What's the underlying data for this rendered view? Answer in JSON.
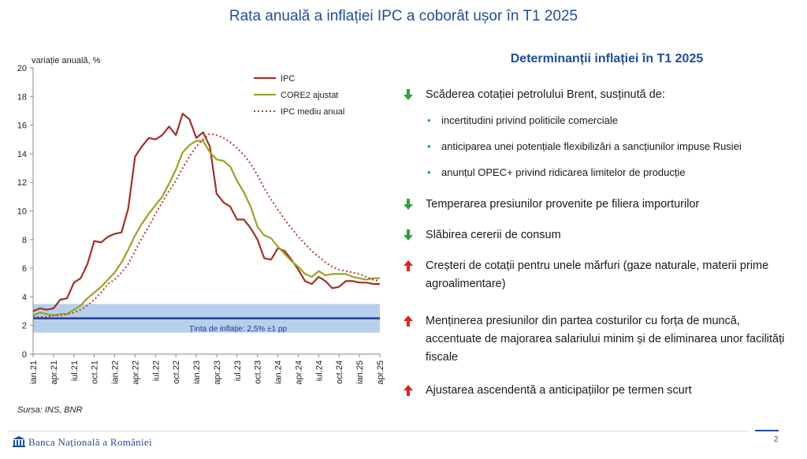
{
  "page": {
    "title": "Rata anuală a inflației IPC a coborât ușor în T1 2025",
    "source": "Sursa: INS, BNR",
    "bank_name": "Banca Națională a României",
    "page_number": "2"
  },
  "right": {
    "heading": "Determinanții inflației în T1 2025",
    "items": [
      {
        "direction": "down",
        "text": "Scăderea cotației petrolului Brent, susținută de:"
      },
      {
        "direction": "down",
        "text": "Temperarea presiunilor provenite pe filiera importurilor"
      },
      {
        "direction": "down",
        "text": "Slăbirea cererii de consum"
      },
      {
        "direction": "up",
        "text": "Creșteri de cotații pentru unele mărfuri (gaze naturale, materii prime agroalimentare)"
      },
      {
        "direction": "up",
        "text": "Menținerea presiunilor din partea costurilor cu forța de muncă, accentuate de majorarea salariului minim și de eliminarea unor facilități fiscale"
      },
      {
        "direction": "up",
        "text": "Ajustarea ascendentă a anticipațiilor pe termen scurt"
      }
    ],
    "subitems": [
      "incertitudini privind politicile comerciale",
      "anticiparea unei potențiale flexibilizări a sancțiunilor impuse Rusiei",
      "anunțul OPEC+ privind ridicarea limitelor de producție"
    ],
    "colors": {
      "down": "#2aa43a",
      "up": "#e2231a"
    }
  },
  "chart_data": {
    "type": "line",
    "ylabel": "variație anuală, %",
    "ylim": [
      0,
      20
    ],
    "yticks": [
      0,
      2,
      4,
      6,
      8,
      10,
      12,
      14,
      16,
      18,
      20
    ],
    "x": [
      "ian.21",
      "feb.21",
      "mar.21",
      "apr.21",
      "mai.21",
      "iun.21",
      "iul.21",
      "aug.21",
      "sep.21",
      "oct.21",
      "nov.21",
      "dec.21",
      "ian.22",
      "feb.22",
      "mar.22",
      "apr.22",
      "mai.22",
      "iun.22",
      "iul.22",
      "aug.22",
      "sep.22",
      "oct.22",
      "nov.22",
      "dec.22",
      "ian.23",
      "feb.23",
      "mar.23",
      "apr.23",
      "mai.23",
      "iun.23",
      "iul.23",
      "aug.23",
      "sep.23",
      "oct.23",
      "nov.23",
      "dec.23",
      "ian.24",
      "feb.24",
      "mar.24",
      "apr.24",
      "mai.24",
      "iun.24",
      "iul.24",
      "aug.24",
      "sep.24",
      "oct.24",
      "nov.24",
      "dec.24",
      "ian.25",
      "feb.25",
      "mar.25",
      "apr.25"
    ],
    "xtick_labels": [
      "ian.21",
      "apr.21",
      "iul.21",
      "oct.21",
      "ian.22",
      "apr.22",
      "iul.22",
      "oct.22",
      "ian.23",
      "apr.23",
      "iul.23",
      "oct.23",
      "ian.24",
      "apr.24",
      "iul.24",
      "oct.24",
      "ian.25",
      "apr.25"
    ],
    "series": [
      {
        "name": "IPC",
        "color": "#a0302a",
        "style": "solid",
        "values": [
          3.0,
          3.2,
          3.1,
          3.2,
          3.8,
          3.9,
          5.0,
          5.3,
          6.3,
          7.9,
          7.8,
          8.2,
          8.4,
          8.5,
          10.2,
          13.8,
          14.5,
          15.1,
          15.0,
          15.3,
          15.9,
          15.3,
          16.8,
          16.4,
          15.1,
          15.5,
          14.5,
          11.2,
          10.6,
          10.3,
          9.4,
          9.4,
          8.8,
          8.0,
          6.7,
          6.6,
          7.4,
          7.2,
          6.6,
          5.9,
          5.1,
          4.9,
          5.4,
          5.1,
          4.6,
          4.7,
          5.1,
          5.1,
          5.0,
          5.0,
          4.9,
          4.9
        ]
      },
      {
        "name": "CORE2 ajustat",
        "color": "#9aa421",
        "style": "solid",
        "values": [
          2.7,
          2.9,
          2.8,
          2.7,
          2.8,
          2.8,
          3.1,
          3.4,
          3.9,
          4.3,
          4.7,
          5.2,
          5.7,
          6.4,
          7.3,
          8.3,
          9.1,
          9.8,
          10.4,
          11.0,
          11.9,
          12.9,
          14.1,
          14.6,
          14.9,
          14.9,
          14.1,
          13.6,
          13.5,
          13.1,
          12.1,
          11.3,
          10.3,
          8.9,
          8.3,
          8.1,
          7.5,
          7.0,
          6.5,
          6.1,
          5.6,
          5.4,
          5.8,
          5.5,
          5.6,
          5.6,
          5.6,
          5.4,
          5.3,
          5.2,
          5.3,
          5.3
        ]
      },
      {
        "name": "IPC mediu anual",
        "color": "#b83a32",
        "style": "dotted",
        "values": [
          2.6,
          2.6,
          2.6,
          2.7,
          2.7,
          2.8,
          2.9,
          3.1,
          3.4,
          3.8,
          4.3,
          4.9,
          5.2,
          5.7,
          6.3,
          7.2,
          8.1,
          8.9,
          9.8,
          10.6,
          11.4,
          12.1,
          13.0,
          13.8,
          14.5,
          15.0,
          15.4,
          15.3,
          15.1,
          14.8,
          14.4,
          13.9,
          13.3,
          12.5,
          11.6,
          10.8,
          10.1,
          9.4,
          8.8,
          8.2,
          7.7,
          7.2,
          6.8,
          6.4,
          6.1,
          5.9,
          5.8,
          5.7,
          5.6,
          5.4,
          5.2,
          5.1
        ]
      }
    ],
    "target": {
      "label": "Ținta de inflație: 2,5% ±1 pp",
      "value": 2.5,
      "lower": 1.5,
      "upper": 3.5,
      "line_color": "#1f3c99",
      "band_color": "#b8cfeb"
    },
    "legend_position": "top-right",
    "grid": false
  }
}
